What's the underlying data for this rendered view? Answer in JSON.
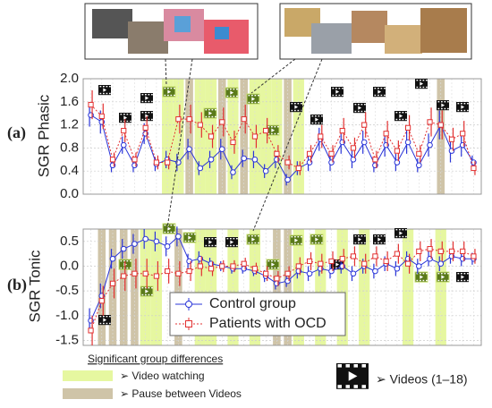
{
  "chart_data": [
    {
      "type": "line",
      "panel_label": "(a)",
      "ylabel": "SGR Phasic",
      "x": [
        1,
        2,
        3,
        4,
        5,
        6,
        7,
        8,
        9,
        10,
        11,
        12,
        13,
        14,
        15,
        16,
        17,
        18,
        19,
        20,
        21,
        22,
        23,
        24,
        25,
        26,
        27,
        28,
        29,
        30,
        31,
        32,
        33,
        34,
        35,
        36
      ],
      "xlim": [
        0.3,
        36.7
      ],
      "ylim": [
        0,
        2.0
      ],
      "yticks": [
        {
          "value": 0,
          "label": "0.0"
        },
        0.4,
        0.8,
        1.2,
        1.6,
        {
          "value": 2.0,
          "label": "2.0"
        }
      ],
      "grid": true,
      "video_bands": [
        8,
        9,
        11,
        12,
        14,
        16,
        17,
        18,
        20
      ],
      "pause_bands": [
        10,
        13,
        15,
        19,
        33
      ],
      "series": [
        {
          "name": "Control group",
          "color": "#2a35d8",
          "marker": "circle",
          "values": [
            1.37,
            1.25,
            0.5,
            0.85,
            0.5,
            1.05,
            0.52,
            0.6,
            0.55,
            0.78,
            0.45,
            0.6,
            0.78,
            0.38,
            0.62,
            0.6,
            0.4,
            0.6,
            0.25,
            0.45,
            0.55,
            0.95,
            0.55,
            0.9,
            0.6,
            0.9,
            0.5,
            0.85,
            0.55,
            0.9,
            0.5,
            0.85,
            1.2,
            0.75,
            0.85,
            0.55
          ],
          "errors": [
            0.2,
            0.2,
            0.12,
            0.15,
            0.12,
            0.18,
            0.12,
            0.15,
            0.15,
            0.18,
            0.12,
            0.15,
            0.18,
            0.12,
            0.15,
            0.15,
            0.12,
            0.15,
            0.1,
            0.12,
            0.15,
            0.2,
            0.15,
            0.2,
            0.15,
            0.2,
            0.12,
            0.2,
            0.15,
            0.2,
            0.12,
            0.2,
            0.25,
            0.2,
            0.2,
            0.12
          ]
        },
        {
          "name": "Patients with OCD",
          "color": "#e23030",
          "marker": "square",
          "values": [
            1.55,
            1.35,
            0.6,
            1.1,
            0.6,
            1.15,
            0.55,
            0.55,
            1.3,
            1.3,
            1.2,
            1.0,
            1.25,
            0.9,
            1.3,
            1.0,
            1.1,
            0.7,
            0.55,
            0.45,
            0.7,
            1.0,
            0.7,
            1.1,
            0.8,
            1.2,
            0.6,
            1.05,
            0.75,
            1.15,
            0.7,
            1.25,
            1.2,
            0.95,
            1.05,
            0.45
          ],
          "errors": [
            0.25,
            0.22,
            0.12,
            0.2,
            0.12,
            0.2,
            0.12,
            0.12,
            0.25,
            0.25,
            0.22,
            0.2,
            0.25,
            0.2,
            0.25,
            0.2,
            0.22,
            0.15,
            0.12,
            0.12,
            0.15,
            0.2,
            0.15,
            0.22,
            0.18,
            0.22,
            0.15,
            0.22,
            0.18,
            0.22,
            0.15,
            0.25,
            0.25,
            0.2,
            0.22,
            0.12
          ]
        }
      ]
    },
    {
      "type": "line",
      "panel_label": "(b)",
      "ylabel": "SGR Tonic",
      "x": [
        1,
        2,
        3,
        4,
        5,
        6,
        7,
        8,
        9,
        10,
        11,
        12,
        13,
        14,
        15,
        16,
        17,
        18,
        19,
        20,
        21,
        22,
        23,
        24,
        25,
        26,
        27,
        28,
        29,
        30,
        31,
        32,
        33,
        34,
        35,
        36
      ],
      "xlim": [
        0.3,
        36.7
      ],
      "ylim": [
        -1.6,
        0.75
      ],
      "yticks": [
        -1.5,
        {
          "value": -1.0,
          "label": "-1.0"
        },
        -0.5,
        {
          "value": 0,
          "label": "0.0"
        },
        0.5
      ],
      "grid": true,
      "video_bands": [
        6,
        7,
        11,
        12,
        14,
        16,
        20,
        22,
        24,
        26,
        30,
        33
      ],
      "pause_bands": [
        2,
        3,
        4,
        5,
        9,
        18,
        19
      ],
      "series": [
        {
          "name": "Control group",
          "color": "#2a35d8",
          "marker": "circle",
          "values": [
            -1.1,
            -0.6,
            0.15,
            0.35,
            0.45,
            0.55,
            0.5,
            0.4,
            0.6,
            0.1,
            0.15,
            0.05,
            0.0,
            -0.05,
            -0.05,
            -0.1,
            -0.2,
            -0.35,
            -0.3,
            -0.1,
            -0.15,
            -0.05,
            -0.1,
            0.0,
            -0.15,
            0.0,
            -0.1,
            0.05,
            -0.05,
            0.15,
            0.0,
            0.15,
            0.05,
            0.2,
            0.15,
            0.15
          ],
          "errors": [
            0.25,
            0.25,
            0.2,
            0.2,
            0.2,
            0.2,
            0.2,
            0.2,
            0.2,
            0.15,
            0.15,
            0.12,
            0.1,
            0.1,
            0.1,
            0.1,
            0.12,
            0.12,
            0.12,
            0.15,
            0.15,
            0.15,
            0.15,
            0.15,
            0.15,
            0.15,
            0.15,
            0.15,
            0.15,
            0.15,
            0.15,
            0.15,
            0.15,
            0.15,
            0.15,
            0.12
          ]
        },
        {
          "name": "Patients with OCD",
          "color": "#e23030",
          "marker": "square",
          "values": [
            -1.3,
            -0.7,
            -0.35,
            -0.2,
            -0.15,
            -0.15,
            -0.2,
            -0.1,
            -0.15,
            -0.1,
            0.0,
            -0.05,
            0.0,
            0.0,
            0.05,
            -0.05,
            -0.15,
            -0.25,
            -0.15,
            0.0,
            0.1,
            0.05,
            0.1,
            0.15,
            0.2,
            0.05,
            0.2,
            0.1,
            0.25,
            0.05,
            0.3,
            0.35,
            0.3,
            0.3,
            0.3,
            0.2
          ],
          "errors": [
            0.3,
            0.3,
            0.3,
            0.3,
            0.3,
            0.3,
            0.3,
            0.25,
            0.25,
            0.2,
            0.2,
            0.15,
            0.12,
            0.12,
            0.12,
            0.12,
            0.15,
            0.15,
            0.15,
            0.18,
            0.18,
            0.2,
            0.2,
            0.2,
            0.2,
            0.2,
            0.2,
            0.2,
            0.2,
            0.2,
            0.2,
            0.2,
            0.2,
            0.2,
            0.2,
            0.15
          ]
        }
      ]
    }
  ],
  "bottom_legend": {
    "title": "Significant group differences",
    "video": "➢ Video watching",
    "pause": "➢ Pause between Videos",
    "videos": "➢ Videos (1–18)"
  }
}
